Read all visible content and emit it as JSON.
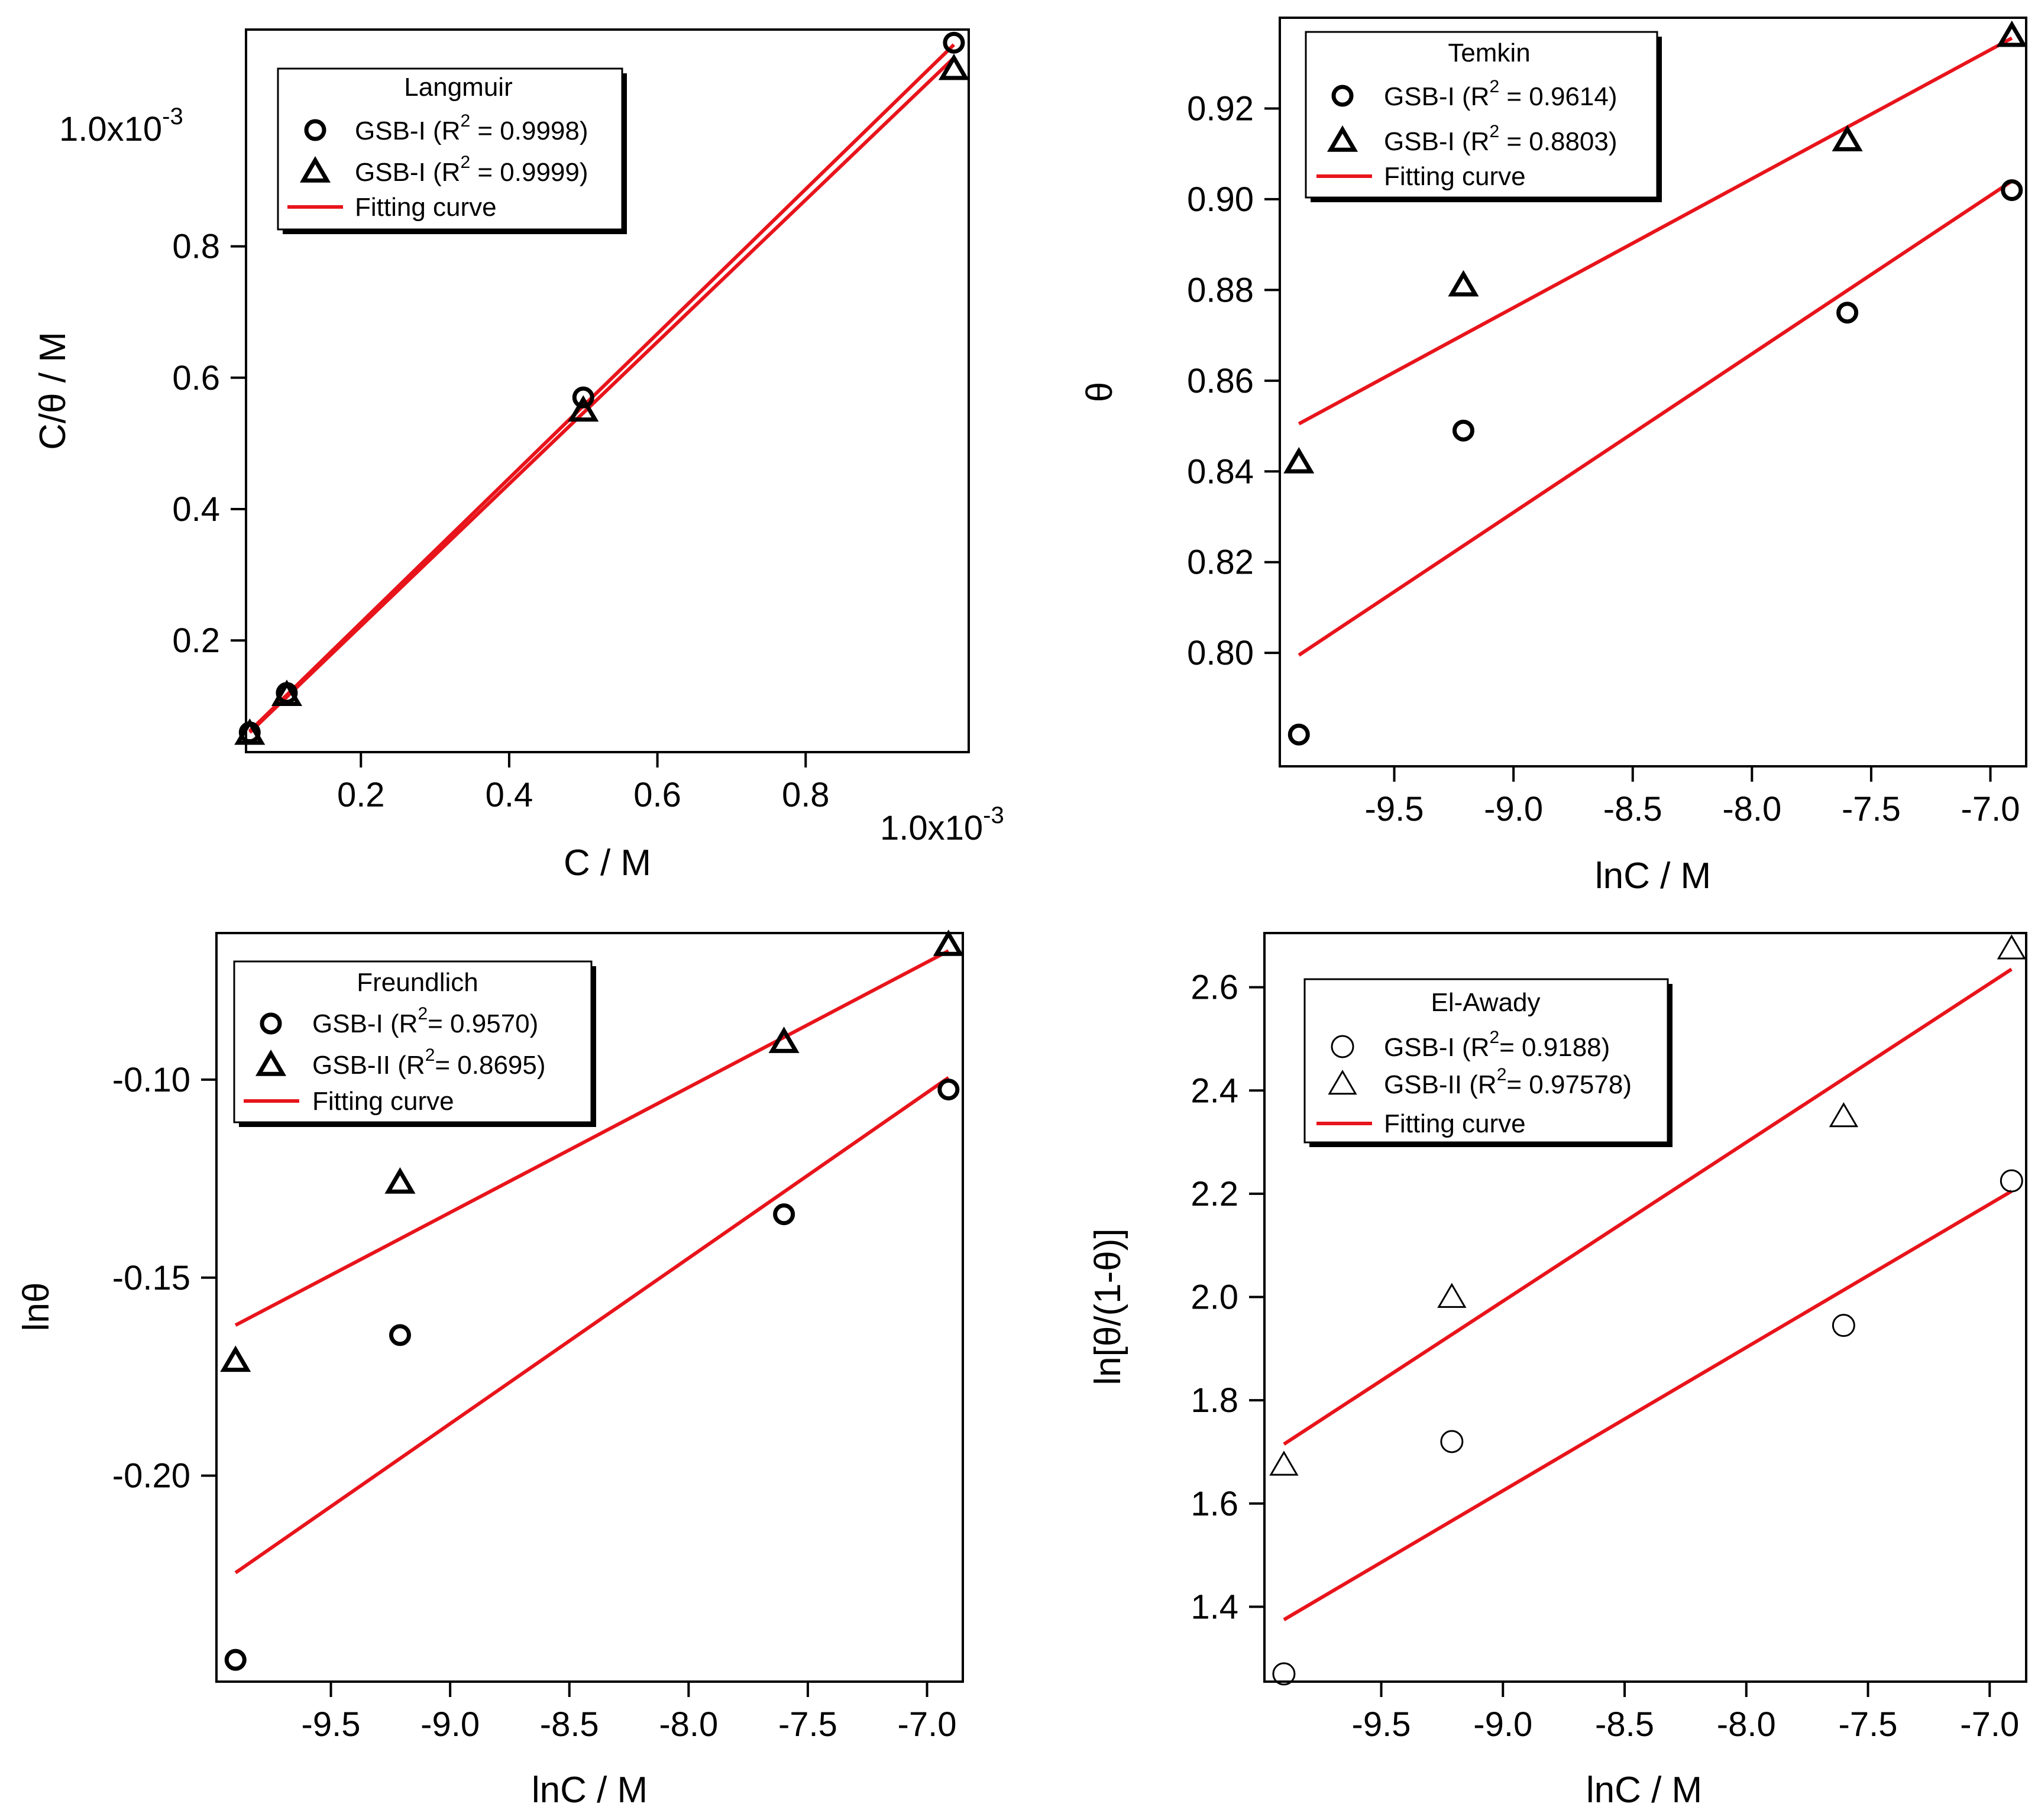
{
  "chart_data": [
    {
      "id": "langmuir",
      "type": "scatter",
      "legend_title": "Langmuir",
      "xlabel": "C / M",
      "ylabel": "C/θ / M",
      "x_exponent_label": "1.0x10",
      "x_exponent_sup": "-3",
      "y_exponent_label": "1.0x10",
      "y_exponent_sup": "-3",
      "xlim": [
        0.045,
        1.02
      ],
      "ylim": [
        0.03,
        1.13
      ],
      "x_ticks": [
        0.2,
        0.4,
        0.6,
        0.8
      ],
      "x_tick_labels": [
        "0.2",
        "0.4",
        "0.6",
        "0.8"
      ],
      "y_ticks": [
        0.2,
        0.4,
        0.6,
        0.8
      ],
      "y_tick_labels": [
        "0.2",
        "0.4",
        "0.6",
        "0.8"
      ],
      "series": [
        {
          "name": "GSB-I",
          "legend_prefix": "GSB-I (R",
          "legend_sup": "2",
          "legend_suffix": " = 0.9998)",
          "marker": "circle",
          "x": [
            0.05,
            0.1,
            0.5,
            1.0
          ],
          "y": [
            0.06,
            0.12,
            0.57,
            1.11
          ],
          "fit": [
            [
              0.05,
              0.062
            ],
            [
              1.0,
              1.107
            ]
          ]
        },
        {
          "name": "GSB-I",
          "legend_prefix": "GSB-I (R",
          "legend_sup": "2",
          "legend_suffix": " = 0.9999)",
          "marker": "triangle",
          "x": [
            0.05,
            0.1,
            0.5,
            1.0
          ],
          "y": [
            0.058,
            0.117,
            0.55,
            1.07
          ],
          "fit": [
            [
              0.05,
              0.06
            ],
            [
              1.0,
              1.087
            ]
          ]
        }
      ],
      "fit_legend": "Fitting curve",
      "fit_color": "#e8141b"
    },
    {
      "id": "temkin",
      "type": "scatter",
      "legend_title": "Temkin",
      "xlabel": "lnC / M",
      "ylabel": "θ",
      "xlim": [
        -9.98,
        -6.85
      ],
      "ylim": [
        0.775,
        0.94
      ],
      "x_ticks": [
        -9.5,
        -9.0,
        -8.5,
        -8.0,
        -7.5,
        -7.0
      ],
      "x_tick_labels": [
        "-9.5",
        "-9.0",
        "-8.5",
        "-8.0",
        "-7.5",
        "-7.0"
      ],
      "y_ticks": [
        0.8,
        0.82,
        0.84,
        0.86,
        0.88,
        0.9,
        0.92
      ],
      "y_tick_labels": [
        "0.80",
        "0.82",
        "0.84",
        "0.86",
        "0.88",
        "0.90",
        "0.92"
      ],
      "series": [
        {
          "name": "GSB-I",
          "legend_prefix": "GSB-I (R",
          "legend_sup": "2",
          "legend_suffix": " = 0.9614)",
          "marker": "circle",
          "x": [
            -9.9,
            -9.21,
            -7.6,
            -6.91
          ],
          "y": [
            0.782,
            0.849,
            0.875,
            0.902
          ],
          "fit": [
            [
              -9.9,
              0.7995
            ],
            [
              -6.91,
              0.904
            ]
          ]
        },
        {
          "name": "GSB-I",
          "legend_prefix": "GSB-I (R",
          "legend_sup": "2",
          "legend_suffix": " = 0.8803)",
          "marker": "triangle",
          "x": [
            -9.9,
            -9.21,
            -7.6,
            -6.91
          ],
          "y": [
            0.842,
            0.881,
            0.913,
            0.936
          ],
          "fit": [
            [
              -9.9,
              0.8505
            ],
            [
              -6.91,
              0.9355
            ]
          ]
        }
      ],
      "fit_legend": "Fitting curve",
      "fit_color": "#e8141b"
    },
    {
      "id": "freundlich",
      "type": "scatter",
      "legend_title": "Freundlich",
      "xlabel": "lnC / M",
      "ylabel": "lnθ",
      "xlim": [
        -9.98,
        -6.85
      ],
      "ylim": [
        -0.252,
        -0.063
      ],
      "x_ticks": [
        -9.5,
        -9.0,
        -8.5,
        -8.0,
        -7.5,
        -7.0
      ],
      "x_tick_labels": [
        "-9.5",
        "-9.0",
        "-8.5",
        "-8.0",
        "-7.5",
        "-7.0"
      ],
      "y_ticks": [
        -0.2,
        -0.15,
        -0.1
      ],
      "y_tick_labels": [
        "-0.20",
        "-0.15",
        "-0.10"
      ],
      "series": [
        {
          "name": "GSB-I",
          "legend_prefix": "GSB-I (R",
          "legend_sup": "2",
          "legend_suffix": "= 0.9570)",
          "marker": "circle",
          "x": [
            -9.9,
            -9.21,
            -7.6,
            -6.91
          ],
          "y": [
            -0.2465,
            -0.1645,
            -0.134,
            -0.1025
          ],
          "fit": [
            [
              -9.9,
              -0.2245
            ],
            [
              -6.91,
              -0.0995
            ]
          ]
        },
        {
          "name": "GSB-II",
          "legend_prefix": "GSB-II (R",
          "legend_sup": "2",
          "legend_suffix": "= 0.8695)",
          "marker": "triangle",
          "x": [
            -9.9,
            -9.21,
            -7.6,
            -6.91
          ],
          "y": [
            -0.171,
            -0.126,
            -0.0905,
            -0.066
          ],
          "fit": [
            [
              -9.9,
              -0.162
            ],
            [
              -6.91,
              -0.0675
            ]
          ]
        }
      ],
      "fit_legend": "Fitting curve",
      "fit_color": "#e8141b"
    },
    {
      "id": "el-awady",
      "type": "scatter",
      "legend_title": "El-Awady",
      "xlabel": "lnC / M",
      "ylabel": "ln[θ/(1-θ)]",
      "xlim": [
        -9.98,
        -6.85
      ],
      "ylim": [
        1.255,
        2.705
      ],
      "x_ticks": [
        -9.5,
        -9.0,
        -8.5,
        -8.0,
        -7.5,
        -7.0
      ],
      "x_tick_labels": [
        "-9.5",
        "-9.0",
        "-8.5",
        "-8.0",
        "-7.5",
        "-7.0"
      ],
      "y_ticks": [
        1.4,
        1.6,
        1.8,
        2.0,
        2.2,
        2.4,
        2.6
      ],
      "y_tick_labels": [
        "1.4",
        "1.6",
        "1.8",
        "2.0",
        "2.2",
        "2.4",
        "2.6"
      ],
      "series": [
        {
          "name": "GSB-I",
          "legend_prefix": "GSB-I (R",
          "legend_sup": "2",
          "legend_suffix": "= 0.9188)",
          "marker": "circle-thin",
          "x": [
            -9.9,
            -9.21,
            -7.6,
            -6.91
          ],
          "y": [
            1.27,
            1.72,
            1.945,
            2.225
          ],
          "fit": [
            [
              -9.9,
              1.375
            ],
            [
              -6.91,
              2.205
            ]
          ]
        },
        {
          "name": "GSB-II",
          "legend_prefix": "GSB-II (R",
          "legend_sup": "2",
          "legend_suffix": "= 0.97578)",
          "marker": "triangle-thin",
          "x": [
            -9.9,
            -9.21,
            -7.6,
            -6.91
          ],
          "y": [
            1.675,
            2.0,
            2.35,
            2.675
          ],
          "fit": [
            [
              -9.9,
              1.715
            ],
            [
              -6.91,
              2.635
            ]
          ]
        }
      ],
      "fit_legend": "Fitting curve",
      "fit_color": "#e8141b"
    }
  ]
}
